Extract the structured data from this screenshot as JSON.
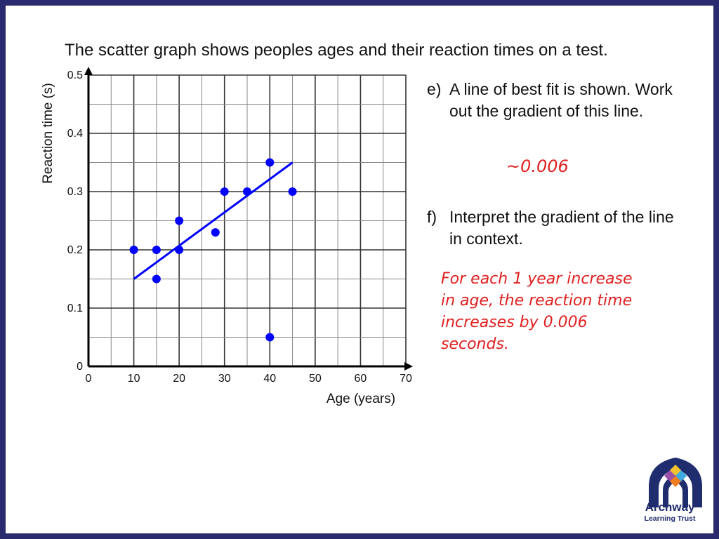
{
  "slide": {
    "title": "The scatter graph shows peoples ages and their reaction times on a test.",
    "question_e": {
      "letter": "e)",
      "text": "A line of best fit is shown. Work out the gradient of this line.",
      "answer": "~0.006"
    },
    "question_f": {
      "letter": "f)",
      "text": "Interpret the gradient of the line in context.",
      "answer_lines": [
        "For each 1 year increase",
        "in age, the reaction time",
        "increases by 0.006",
        "seconds."
      ]
    },
    "logo": {
      "name": "Archway",
      "subtitle": "Learning Trust"
    }
  },
  "chart_data": {
    "type": "scatter",
    "xlabel": "Age (years)",
    "ylabel": "Reaction time (s)",
    "xlim": [
      0,
      70
    ],
    "ylim": [
      0,
      0.5
    ],
    "x_ticks": [
      "0",
      "10",
      "20",
      "30",
      "40",
      "50",
      "60",
      "70"
    ],
    "y_ticks": [
      "0",
      "0.1",
      "0.2",
      "0.3",
      "0.4",
      "0.5"
    ],
    "grid": true,
    "points": [
      {
        "x": 10,
        "y": 0.2
      },
      {
        "x": 15,
        "y": 0.2
      },
      {
        "x": 15,
        "y": 0.15
      },
      {
        "x": 20,
        "y": 0.25
      },
      {
        "x": 20,
        "y": 0.2
      },
      {
        "x": 28,
        "y": 0.23
      },
      {
        "x": 30,
        "y": 0.3
      },
      {
        "x": 35,
        "y": 0.3
      },
      {
        "x": 40,
        "y": 0.35
      },
      {
        "x": 40,
        "y": 0.05
      },
      {
        "x": 45,
        "y": 0.3
      }
    ],
    "best_fit_line": {
      "x1": 10,
      "y1": 0.15,
      "x2": 45,
      "y2": 0.35
    },
    "colors": {
      "points": "#0000ff",
      "line": "#0000ff",
      "grid": "#555555"
    }
  }
}
